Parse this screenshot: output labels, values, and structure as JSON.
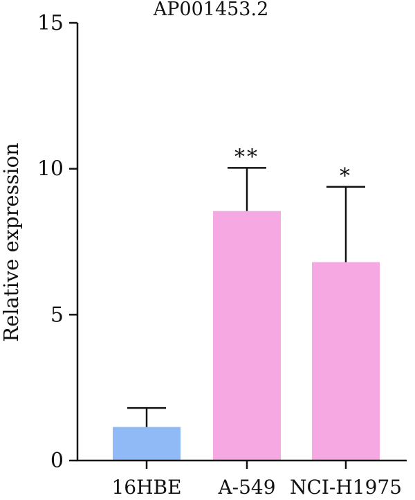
{
  "chart_data": {
    "type": "bar",
    "title": "AP001453.2",
    "xlabel": "",
    "ylabel": "Relative expression",
    "categories": [
      "16HBE",
      "A-549",
      "NCI-H1975"
    ],
    "values": [
      1.15,
      8.55,
      6.8
    ],
    "errors": [
      0.65,
      1.48,
      2.58
    ],
    "significance": [
      "",
      "**",
      "*"
    ],
    "bar_colors": [
      "#8fbaf5",
      "#f5a8e1",
      "#f5a8e1"
    ],
    "ylim": [
      0,
      15
    ],
    "yticks": [
      0,
      5,
      10,
      15
    ],
    "ytick_labels": [
      "0",
      "5",
      "10",
      "15"
    ],
    "grid": false,
    "legend": "none"
  }
}
